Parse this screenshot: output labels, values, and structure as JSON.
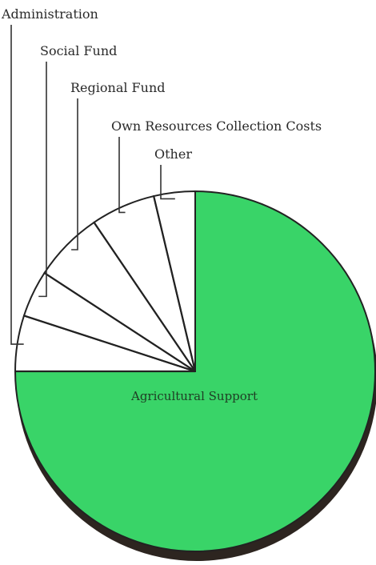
{
  "chart_data": {
    "type": "pie",
    "title": "",
    "unit": "%",
    "slices": [
      {
        "label": "Agricultural Support",
        "value": 75.0,
        "color": "#39d468"
      },
      {
        "label": "Administration",
        "value": 5.0,
        "color": "#ffffff"
      },
      {
        "label": "Social Fund",
        "value": 4.2,
        "color": "#ffffff"
      },
      {
        "label": "Regional Fund",
        "value": 6.3,
        "color": "#ffffff"
      },
      {
        "label": "Own Resources Collection Costs",
        "value": 5.8,
        "color": "#ffffff"
      },
      {
        "label": "Other",
        "value": 3.7,
        "color": "#ffffff"
      }
    ],
    "start_angle_deg": 0,
    "direction": "clockwise"
  },
  "colors": {
    "shadow": "#2d2520",
    "outline": "#222222"
  }
}
